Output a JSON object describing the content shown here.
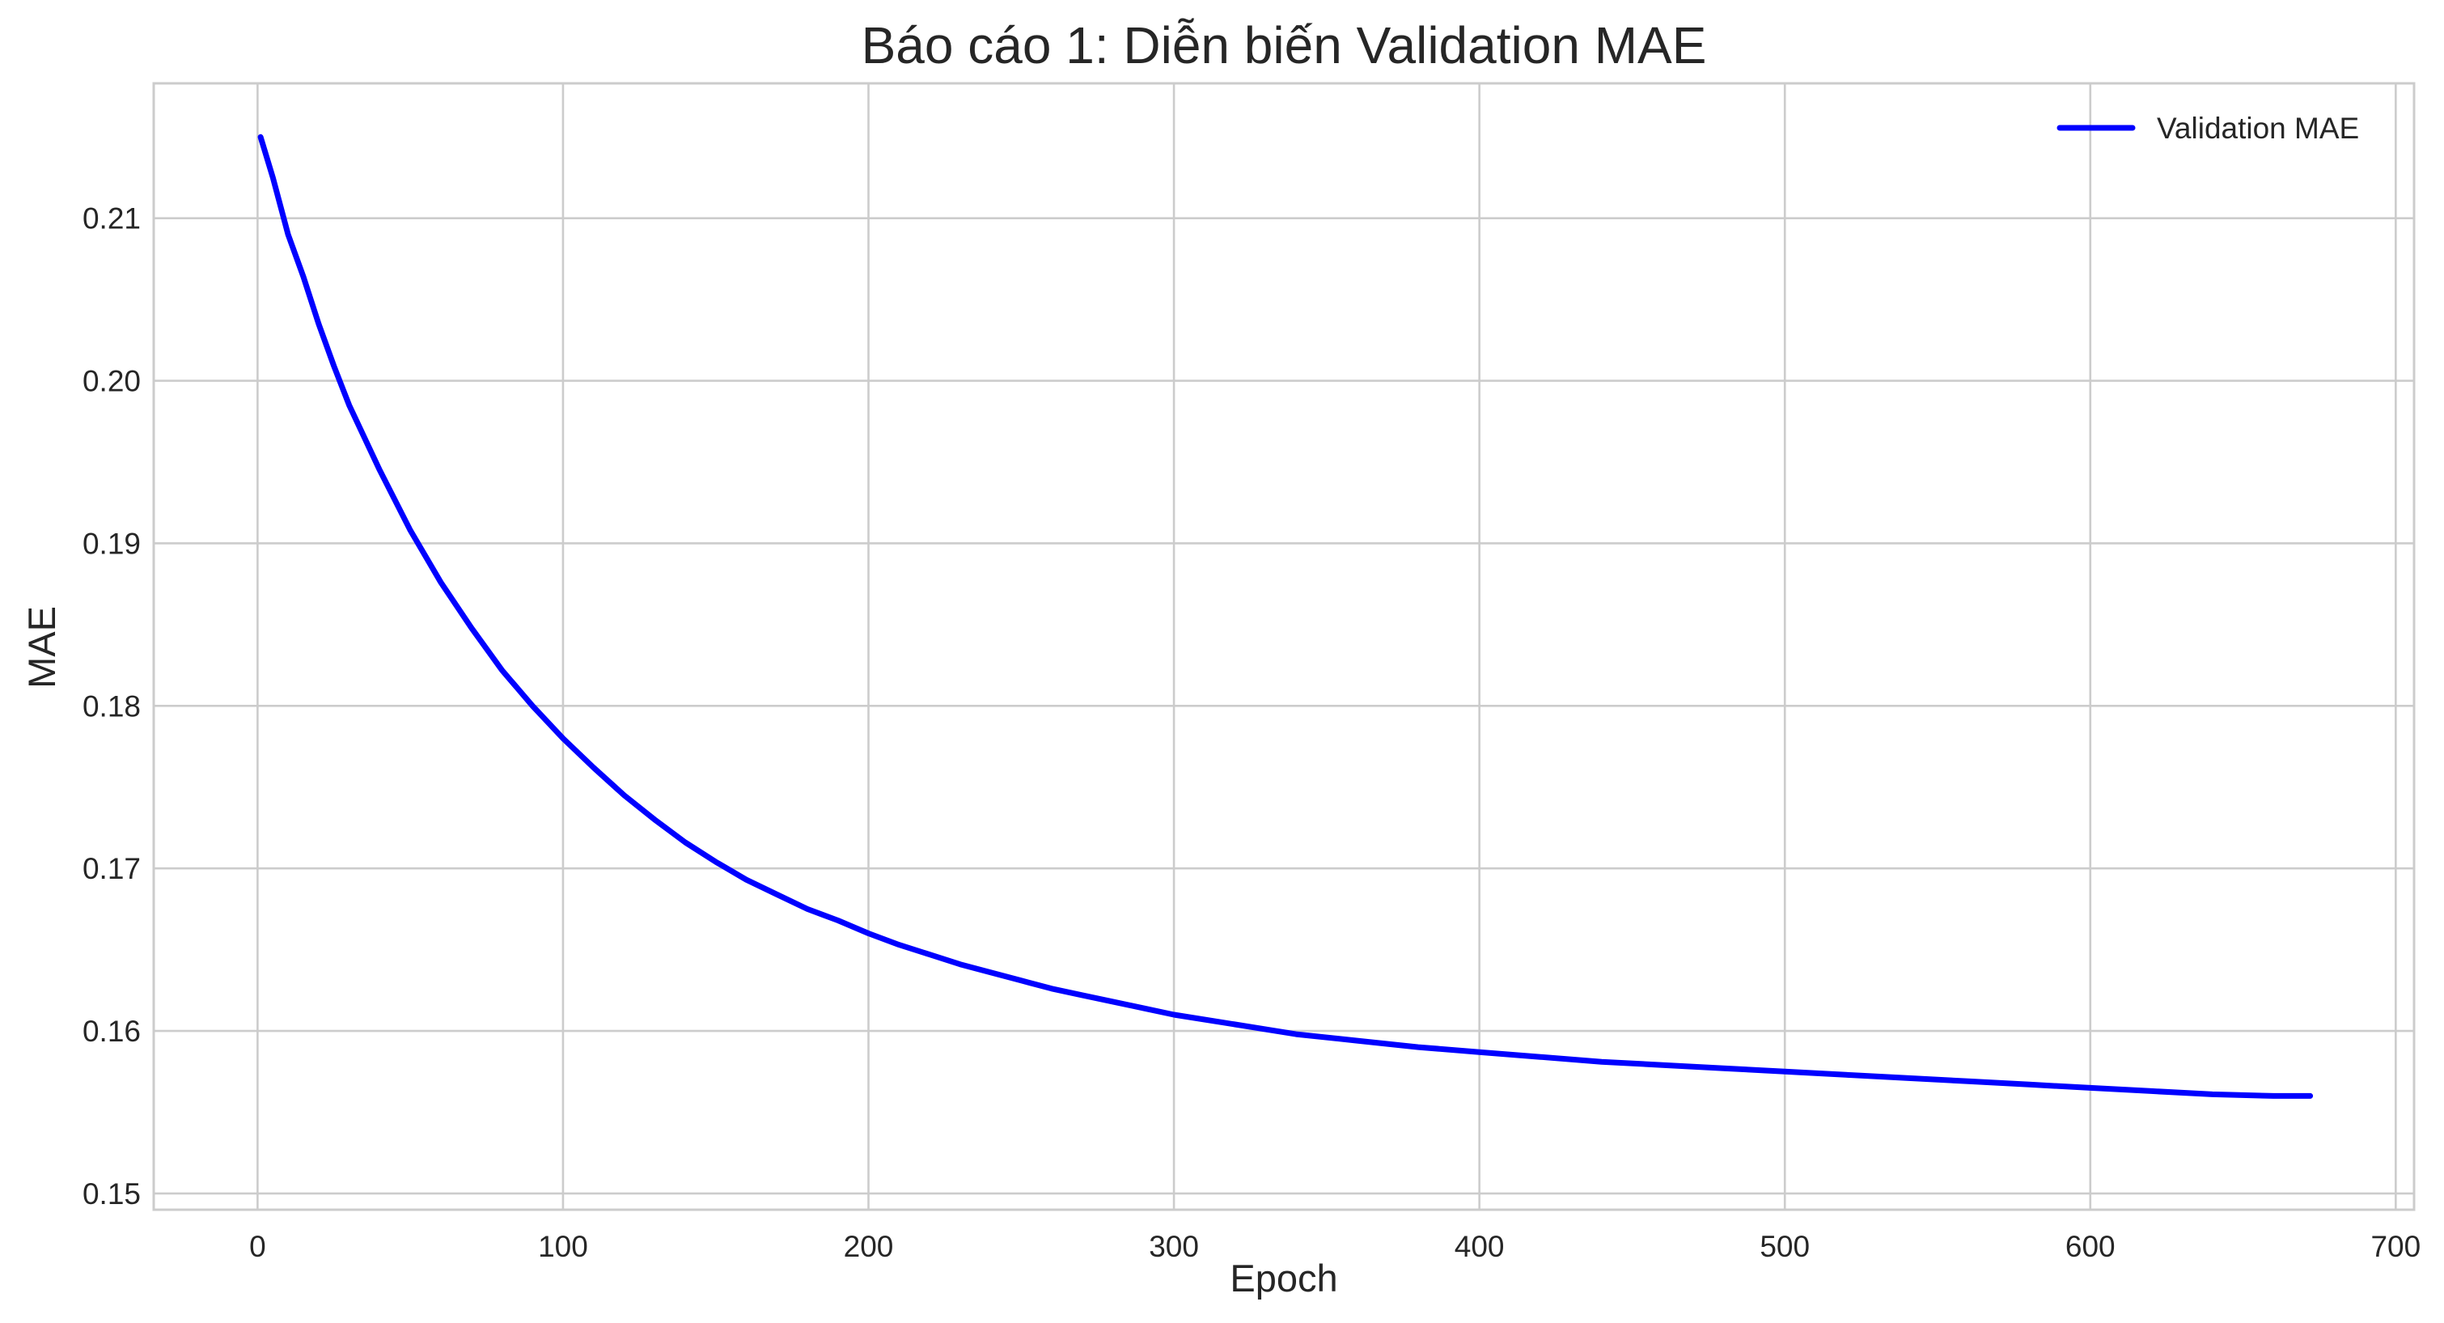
{
  "chart_data": {
    "type": "line",
    "title": "Báo cáo 1: Diễn biến Validation MAE",
    "xlabel": "Epoch",
    "ylabel": "MAE",
    "xlim": [
      -34,
      706
    ],
    "ylim": [
      0.149,
      0.2183
    ],
    "xticks": [
      0,
      100,
      200,
      300,
      400,
      500,
      600,
      700
    ],
    "yticks": [
      0.15,
      0.16,
      0.17,
      0.18,
      0.19,
      0.2,
      0.21
    ],
    "xtick_labels": [
      "0",
      "100",
      "200",
      "300",
      "400",
      "500",
      "600",
      "700"
    ],
    "ytick_labels": [
      "0.15",
      "0.16",
      "0.17",
      "0.18",
      "0.19",
      "0.20",
      "0.21"
    ],
    "grid": true,
    "legend": {
      "placement": "top-right",
      "entries": [
        "Validation MAE"
      ]
    },
    "series": [
      {
        "name": "Validation MAE",
        "color": "#0000ff",
        "x": [
          1,
          5,
          10,
          15,
          20,
          25,
          30,
          40,
          50,
          60,
          70,
          80,
          90,
          100,
          110,
          120,
          130,
          140,
          150,
          160,
          170,
          180,
          190,
          200,
          210,
          220,
          230,
          240,
          250,
          260,
          270,
          280,
          290,
          300,
          320,
          340,
          360,
          380,
          400,
          420,
          440,
          460,
          480,
          500,
          520,
          540,
          560,
          580,
          600,
          620,
          640,
          660,
          672
        ],
        "y": [
          0.215,
          0.2125,
          0.209,
          0.2064,
          0.2035,
          0.2009,
          0.1985,
          0.1945,
          0.1908,
          0.1876,
          0.1848,
          0.1822,
          0.18,
          0.178,
          0.1762,
          0.1745,
          0.173,
          0.1716,
          0.1704,
          0.1693,
          0.1684,
          0.1675,
          0.1668,
          0.166,
          0.1653,
          0.1647,
          0.1641,
          0.1636,
          0.1631,
          0.1626,
          0.1622,
          0.1618,
          0.1614,
          0.161,
          0.1604,
          0.1598,
          0.1594,
          0.159,
          0.1587,
          0.1584,
          0.1581,
          0.1579,
          0.1577,
          0.1575,
          0.1573,
          0.1571,
          0.1569,
          0.1567,
          0.1565,
          0.1563,
          0.1561,
          0.156,
          0.156
        ]
      }
    ]
  }
}
